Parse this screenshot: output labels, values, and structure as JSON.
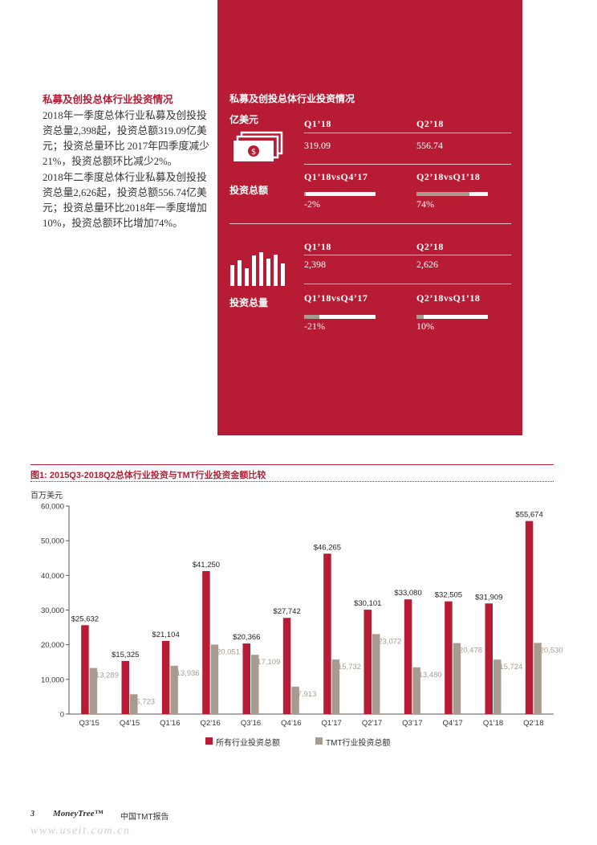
{
  "left": {
    "title": "私募及创投总体行业投资情况",
    "para1": "2018年一季度总体行业私募及创投投资总量2,398起，投资总额319.09亿美元；投资总量环比 2017年四季度减少21%，投资总额环比减少2%。",
    "para2": "2018年二季度总体行业私募及创投投资总量2,626起，投资总额556.74亿美元；投资总量环比2018年一季度增加10%，投资总额环比增加74%。"
  },
  "panel": {
    "heading": "私募及创投总体行业投资情况",
    "unit": "亿美元",
    "amount": {
      "icon": "money-stack-icon",
      "label": "投资总额",
      "q1_label": "Q1’18",
      "q2_label": "Q2’18",
      "q1_value": "319.09",
      "q2_value": "556.74",
      "cmp1_label": "Q1’18vsQ4’17",
      "cmp2_label": "Q2’18vsQ1’18",
      "cmp1_value": "-2%",
      "cmp2_value": "74%",
      "cmp1_fill": 0.02,
      "cmp2_fill": 0.74
    },
    "volume": {
      "icon": "bar-columns-icon",
      "label": "投资总量",
      "q1_label": "Q1’18",
      "q2_label": "Q2’18",
      "q1_value": "2,398",
      "q2_value": "2,626",
      "cmp1_label": "Q1’18vsQ4’17",
      "cmp2_label": "Q2’18vsQ1’18",
      "cmp1_value": "-21%",
      "cmp2_value": "10%",
      "cmp1_fill": 0.21,
      "cmp2_fill": 0.1
    }
  },
  "chart": {
    "title": "图1: 2015Q3-2018Q2总体行业投资与TMT行业投资金额比较",
    "unit_label": "百万美元"
  },
  "chart_data": {
    "type": "bar",
    "title": "图1: 2015Q3-2018Q2总体行业投资与TMT行业投资金额比较",
    "ylabel": "百万美元",
    "ylim": [
      0,
      60000
    ],
    "yticks": [
      "0",
      "10,000",
      "20,000",
      "30,000",
      "40,000",
      "50,000",
      "60,000"
    ],
    "ytick_values": [
      0,
      10000,
      20000,
      30000,
      40000,
      50000,
      60000
    ],
    "categories": [
      "Q3’15",
      "Q4’15",
      "Q1’16",
      "Q2’16",
      "Q3’16",
      "Q4’16",
      "Q1’17",
      "Q2’17",
      "Q3’17",
      "Q4’17",
      "Q1’18",
      "Q2’18"
    ],
    "series": [
      {
        "name": "所有行业投资总额",
        "color": "#b81c34",
        "values": [
          25632,
          15325,
          21104,
          41250,
          20366,
          27742,
          46265,
          30101,
          33080,
          32505,
          31909,
          55674
        ],
        "labels": [
          "$25,632",
          "$15,325",
          "$21,104",
          "$41,250",
          "$20,366",
          "$27,742",
          "$46,265",
          "$30,101",
          "$33,080",
          "$32,505",
          "$31,909",
          "$55,674"
        ]
      },
      {
        "name": "TMT行业投资总额",
        "color": "#a79b90",
        "values": [
          13289,
          5723,
          13936,
          20051,
          17109,
          7913,
          15732,
          23072,
          13480,
          20478,
          15724,
          20530
        ],
        "labels": [
          "$13,289",
          "$5,723",
          "$13,936",
          "$20,051",
          "$17,109",
          "$7,913",
          "$15,732",
          "$23,072",
          "$13,480",
          "$20,478",
          "$15,724",
          "$20,530"
        ]
      }
    ],
    "grid": false,
    "legend": "bottom"
  },
  "footer": {
    "page_number": "3",
    "brand": "MoneyTree™",
    "rest": "中国TMT报告",
    "watermark": "www.useit.com.cn"
  }
}
